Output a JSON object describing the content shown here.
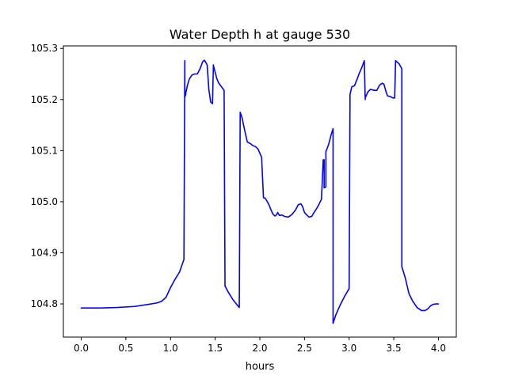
{
  "chart_data": {
    "type": "line",
    "title": "Water Depth h at gauge 530",
    "xlabel": "hours",
    "ylabel": "",
    "xlim": [
      -0.2,
      4.2
    ],
    "ylim": [
      104.735,
      105.305
    ],
    "xticks": [
      0.0,
      0.5,
      1.0,
      1.5,
      2.0,
      2.5,
      3.0,
      3.5,
      4.0
    ],
    "xtick_labels": [
      "0.0",
      "0.5",
      "1.0",
      "1.5",
      "2.0",
      "2.5",
      "3.0",
      "3.5",
      "4.0"
    ],
    "yticks": [
      104.8,
      104.9,
      105.0,
      105.1,
      105.2,
      105.3
    ],
    "ytick_labels": [
      "104.8",
      "104.9",
      "105.0",
      "105.1",
      "105.2",
      "105.3"
    ],
    "grid": false,
    "legend": "none",
    "series": [
      {
        "color": "#0000ff",
        "x": [
          0.0,
          0.2,
          0.4,
          0.6,
          0.75,
          0.85,
          0.9,
          0.95,
          1.0,
          1.05,
          1.1,
          1.15,
          1.16,
          1.16,
          1.17,
          1.17,
          1.19,
          1.21,
          1.24,
          1.27,
          1.3,
          1.33,
          1.36,
          1.38,
          1.41,
          1.42,
          1.43,
          1.45,
          1.47,
          1.48,
          1.48,
          1.5,
          1.52,
          1.54,
          1.57,
          1.6,
          1.61,
          1.65,
          1.7,
          1.75,
          1.77,
          1.78,
          1.8,
          1.83,
          1.86,
          1.88,
          1.9,
          1.92,
          1.95,
          1.98,
          2.02,
          2.04,
          2.04,
          2.06,
          2.1,
          2.13,
          2.15,
          2.17,
          2.19,
          2.2,
          2.22,
          2.25,
          2.28,
          2.32,
          2.36,
          2.4,
          2.43,
          2.46,
          2.48,
          2.5,
          2.52,
          2.55,
          2.58,
          2.6,
          2.63,
          2.66,
          2.69,
          2.71,
          2.72,
          2.72,
          2.74,
          2.74,
          2.74,
          2.77,
          2.8,
          2.82,
          2.82,
          2.82,
          2.85,
          2.9,
          2.95,
          3.0,
          3.01,
          3.01,
          3.03,
          3.06,
          3.09,
          3.11,
          3.14,
          3.17,
          3.18,
          3.18,
          3.21,
          3.24,
          3.28,
          3.31,
          3.34,
          3.37,
          3.39,
          3.41,
          3.43,
          3.46,
          3.49,
          3.51,
          3.52,
          3.56,
          3.59,
          3.59,
          3.63,
          3.67,
          3.71,
          3.76,
          3.81,
          3.85,
          3.88,
          3.91,
          3.94,
          3.97,
          4.0
        ],
        "y": [
          104.792,
          104.792,
          104.793,
          104.795,
          104.799,
          104.802,
          104.805,
          104.813,
          104.832,
          104.848,
          104.862,
          104.887,
          105.276,
          105.205,
          105.21,
          105.212,
          105.228,
          105.24,
          105.248,
          105.25,
          105.25,
          105.26,
          105.274,
          105.277,
          105.268,
          105.243,
          105.218,
          105.195,
          105.192,
          105.268,
          105.267,
          105.253,
          105.24,
          105.232,
          105.225,
          105.218,
          104.835,
          104.822,
          104.808,
          104.797,
          104.793,
          105.175,
          105.165,
          105.14,
          105.117,
          105.115,
          105.113,
          105.11,
          105.108,
          105.103,
          105.087,
          105.01,
          105.008,
          105.007,
          104.995,
          104.982,
          104.975,
          104.972,
          104.975,
          104.979,
          104.973,
          104.974,
          104.971,
          104.97,
          104.975,
          104.984,
          104.994,
          104.996,
          104.99,
          104.979,
          104.975,
          104.97,
          104.971,
          104.977,
          104.985,
          104.994,
          105.005,
          105.082,
          105.082,
          105.027,
          105.029,
          105.086,
          105.098,
          105.112,
          105.132,
          105.143,
          104.873,
          104.762,
          104.778,
          104.798,
          104.815,
          104.83,
          105.208,
          105.21,
          105.225,
          105.227,
          105.24,
          105.25,
          105.262,
          105.276,
          105.2,
          105.203,
          105.215,
          105.22,
          105.218,
          105.218,
          105.228,
          105.232,
          105.23,
          105.217,
          105.207,
          105.206,
          105.203,
          105.203,
          105.276,
          105.27,
          105.26,
          104.873,
          104.85,
          104.82,
          104.806,
          104.793,
          104.787,
          104.787,
          104.79,
          104.796,
          104.799,
          104.8,
          104.8
        ]
      }
    ]
  }
}
